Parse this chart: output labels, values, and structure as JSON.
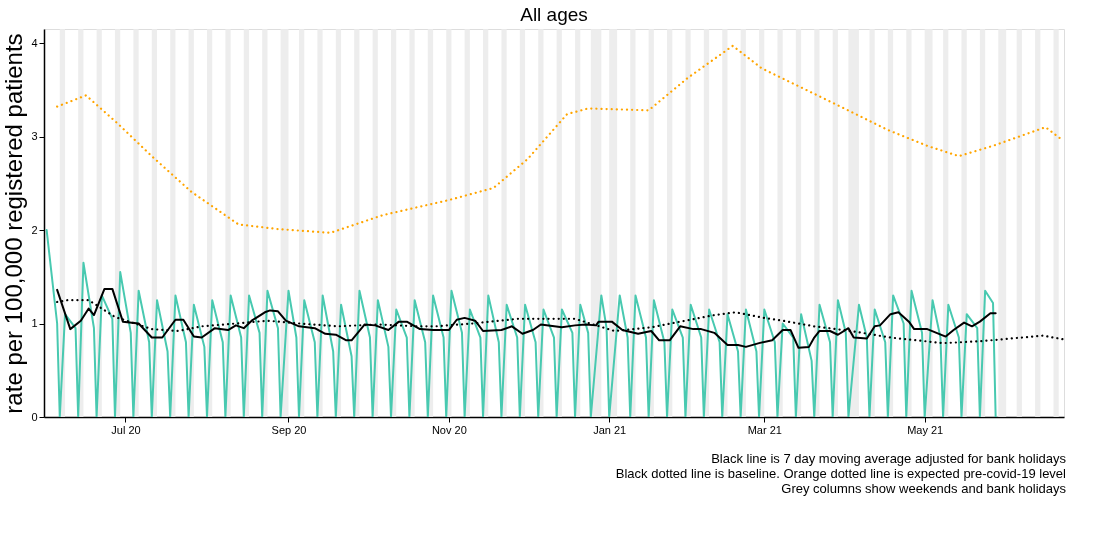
{
  "chart_data": {
    "type": "line",
    "title": "All ages",
    "ylabel": "rate per 100,000 registered patients",
    "xlim": [
      "2020-05-31",
      "2021-06-23"
    ],
    "xticks": [
      {
        "value": "2020-07-01",
        "label": "Jul 20"
      },
      {
        "value": "2020-09-01",
        "label": "Sep 20"
      },
      {
        "value": "2020-11-01",
        "label": "Nov 20"
      },
      {
        "value": "2021-01-01",
        "label": "Jan 21"
      },
      {
        "value": "2021-03-01",
        "label": "Mar 21"
      },
      {
        "value": "2021-05-01",
        "label": "May 21"
      }
    ],
    "ylim": [
      0,
      4.15
    ],
    "yticks": [
      0,
      1,
      2,
      3,
      4
    ],
    "series": [
      {
        "color": "#48c9b0",
        "line_style": "solid",
        "x": [
          "2020-06-01",
          "2020-06-05",
          "2020-06-06",
          "2020-06-08",
          "2020-06-12",
          "2020-06-13",
          "2020-06-15",
          "2020-06-19",
          "2020-06-20",
          "2020-06-22",
          "2020-06-26",
          "2020-06-27",
          "2020-06-29",
          "2020-07-03",
          "2020-07-04",
          "2020-07-06",
          "2020-07-10",
          "2020-07-11",
          "2020-07-13",
          "2020-07-17",
          "2020-07-18",
          "2020-07-20",
          "2020-07-24",
          "2020-07-25",
          "2020-07-27",
          "2020-07-31",
          "2020-08-01",
          "2020-08-03",
          "2020-08-07",
          "2020-08-08",
          "2020-08-10",
          "2020-08-14",
          "2020-08-15",
          "2020-08-17",
          "2020-08-21",
          "2020-08-22",
          "2020-08-24",
          "2020-08-28",
          "2020-08-29",
          "2020-09-01",
          "2020-09-04",
          "2020-09-05",
          "2020-09-07",
          "2020-09-11",
          "2020-09-12",
          "2020-09-14",
          "2020-09-18",
          "2020-09-19",
          "2020-09-21",
          "2020-09-25",
          "2020-09-26",
          "2020-09-28",
          "2020-10-02",
          "2020-10-03",
          "2020-10-05",
          "2020-10-09",
          "2020-10-10",
          "2020-10-12",
          "2020-10-16",
          "2020-10-17",
          "2020-10-19",
          "2020-10-23",
          "2020-10-24",
          "2020-10-26",
          "2020-10-30",
          "2020-10-31",
          "2020-11-02",
          "2020-11-06",
          "2020-11-07",
          "2020-11-09",
          "2020-11-13",
          "2020-11-14",
          "2020-11-16",
          "2020-11-20",
          "2020-11-21",
          "2020-11-23",
          "2020-11-27",
          "2020-11-28",
          "2020-11-30",
          "2020-12-04",
          "2020-12-05",
          "2020-12-07",
          "2020-12-11",
          "2020-12-12",
          "2020-12-14",
          "2020-12-18",
          "2020-12-19",
          "2020-12-21",
          "2020-12-24",
          "2020-12-25",
          "2020-12-29",
          "2020-12-31",
          "2021-01-01",
          "2021-01-05",
          "2021-01-08",
          "2021-01-09",
          "2021-01-11",
          "2021-01-15",
          "2021-01-16",
          "2021-01-18",
          "2021-01-22",
          "2021-01-23",
          "2021-01-25",
          "2021-01-29",
          "2021-01-30",
          "2021-02-01",
          "2021-02-05",
          "2021-02-06",
          "2021-02-08",
          "2021-02-12",
          "2021-02-13",
          "2021-02-15",
          "2021-02-19",
          "2021-02-20",
          "2021-02-22",
          "2021-02-26",
          "2021-02-27",
          "2021-03-01",
          "2021-03-05",
          "2021-03-06",
          "2021-03-08",
          "2021-03-12",
          "2021-03-13",
          "2021-03-15",
          "2021-03-19",
          "2021-03-20",
          "2021-03-22",
          "2021-03-26",
          "2021-03-27",
          "2021-03-29",
          "2021-04-01",
          "2021-04-02",
          "2021-04-06",
          "2021-04-09",
          "2021-04-10",
          "2021-04-12",
          "2021-04-16",
          "2021-04-17",
          "2021-04-19",
          "2021-04-23",
          "2021-04-24",
          "2021-04-26",
          "2021-04-30",
          "2021-05-01",
          "2021-05-04",
          "2021-05-07",
          "2021-05-08",
          "2021-05-10",
          "2021-05-14",
          "2021-05-15",
          "2021-05-17",
          "2021-05-21",
          "2021-05-22",
          "2021-05-24",
          "2021-05-27",
          "2021-05-28"
        ],
        "values": [
          2.0,
          1.0,
          0,
          1.1,
          0.95,
          0,
          1.65,
          0.95,
          0,
          1.3,
          1.05,
          0,
          1.55,
          0.9,
          0,
          1.35,
          0.8,
          0,
          1.25,
          0.7,
          0,
          1.3,
          0.8,
          0,
          1.2,
          0.75,
          0,
          1.25,
          0.8,
          0,
          1.3,
          0.85,
          0,
          1.3,
          0.9,
          0,
          1.35,
          0.95,
          0,
          1.35,
          0.85,
          0,
          1.25,
          0.8,
          0,
          1.3,
          0.7,
          0,
          1.2,
          0.65,
          0,
          1.35,
          0.85,
          0,
          1.25,
          0.75,
          0,
          1.15,
          0.85,
          0,
          1.25,
          0.8,
          0,
          1.3,
          0.85,
          0,
          1.35,
          0.9,
          0,
          1.15,
          0.85,
          0,
          1.3,
          0.8,
          0,
          1.2,
          0.85,
          0,
          1.2,
          0.8,
          0,
          1.15,
          0.85,
          0,
          1.15,
          0.9,
          0,
          1.2,
          0.9,
          0,
          1.3,
          0.95,
          0,
          1.3,
          0.85,
          0,
          1.3,
          0.85,
          0,
          1.25,
          0.8,
          0,
          1.15,
          0.85,
          0,
          1.2,
          0.85,
          0,
          1.15,
          0.8,
          0,
          1.1,
          0.7,
          0,
          1.15,
          0.7,
          0,
          1.15,
          0.8,
          0,
          1.0,
          0.85,
          0,
          1.1,
          0.6,
          0,
          1.2,
          0.8,
          0,
          1.25,
          0.9,
          0,
          1.2,
          0.85,
          0,
          1.15,
          0.8,
          0,
          1.3,
          1.0,
          0,
          1.35,
          0.9,
          0,
          1.25,
          0.85,
          0,
          1.2,
          0.85,
          0,
          1.1,
          0.95,
          0,
          1.35,
          1.22,
          0
        ]
      },
      {
        "color": "#000000",
        "line_style": "solid",
        "x": [
          "2020-06-05",
          "2020-06-10",
          "2020-06-14",
          "2020-06-17",
          "2020-06-19",
          "2020-06-23",
          "2020-06-26",
          "2020-06-30",
          "2020-07-06",
          "2020-07-11",
          "2020-07-15",
          "2020-07-20",
          "2020-07-23",
          "2020-07-27",
          "2020-07-30",
          "2020-08-04",
          "2020-08-09",
          "2020-08-12",
          "2020-08-15",
          "2020-08-18",
          "2020-08-23",
          "2020-08-25",
          "2020-08-28",
          "2020-08-31",
          "2020-09-05",
          "2020-09-11",
          "2020-09-15",
          "2020-09-19",
          "2020-09-23",
          "2020-09-25",
          "2020-09-30",
          "2020-10-04",
          "2020-10-09",
          "2020-10-13",
          "2020-10-16",
          "2020-10-21",
          "2020-10-26",
          "2020-11-01",
          "2020-11-04",
          "2020-11-07",
          "2020-11-11",
          "2020-11-14",
          "2020-11-21",
          "2020-11-25",
          "2020-11-29",
          "2020-12-03",
          "2020-12-06",
          "2020-12-14",
          "2020-12-19",
          "2020-12-23",
          "2020-12-27",
          "2020-12-28",
          "2021-01-02",
          "2021-01-06",
          "2021-01-12",
          "2021-01-17",
          "2021-01-20",
          "2021-01-24",
          "2021-01-28",
          "2021-02-02",
          "2021-02-05",
          "2021-02-10",
          "2021-02-15",
          "2021-02-19",
          "2021-02-22",
          "2021-02-27",
          "2021-03-04",
          "2021-03-08",
          "2021-03-11",
          "2021-03-14",
          "2021-03-18",
          "2021-03-20",
          "2021-03-22",
          "2021-03-26",
          "2021-03-29",
          "2021-04-02",
          "2021-04-04",
          "2021-04-09",
          "2021-04-12",
          "2021-04-14",
          "2021-04-18",
          "2021-04-21",
          "2021-04-25",
          "2021-04-27",
          "2021-05-02",
          "2021-05-09",
          "2021-05-12",
          "2021-05-16",
          "2021-05-19",
          "2021-05-22",
          "2021-05-26",
          "2021-05-28"
        ],
        "values": [
          1.36,
          0.94,
          1.03,
          1.16,
          1.09,
          1.37,
          1.37,
          1.02,
          1.0,
          0.85,
          0.85,
          1.04,
          1.04,
          0.86,
          0.85,
          0.95,
          0.93,
          0.98,
          0.95,
          1.03,
          1.12,
          1.14,
          1.13,
          1.03,
          0.97,
          0.95,
          0.89,
          0.88,
          0.82,
          0.82,
          0.99,
          0.98,
          0.93,
          1.02,
          1.02,
          0.94,
          0.93,
          0.93,
          1.04,
          1.06,
          1.03,
          0.92,
          0.93,
          0.97,
          0.89,
          0.93,
          0.99,
          0.96,
          0.98,
          0.99,
          0.98,
          1.02,
          1.02,
          0.93,
          0.89,
          0.92,
          0.82,
          0.82,
          0.97,
          0.94,
          0.94,
          0.9,
          0.77,
          0.77,
          0.75,
          0.79,
          0.82,
          0.93,
          0.93,
          0.74,
          0.75,
          0.85,
          0.92,
          0.92,
          0.88,
          0.95,
          0.85,
          0.84,
          0.97,
          0.98,
          1.1,
          1.12,
          1.02,
          0.94,
          0.94,
          0.86,
          0.93,
          1.01,
          0.97,
          1.02,
          1.11,
          1.11
        ]
      },
      {
        "color": "#000000",
        "line_style": "dotted",
        "x": [
          "2020-06-05",
          "2020-06-09",
          "2020-06-17",
          "2020-06-27",
          "2020-07-11",
          "2020-07-21",
          "2020-07-30",
          "2020-08-12",
          "2020-08-24",
          "2020-09-05",
          "2020-09-20",
          "2020-10-05",
          "2020-10-20",
          "2020-10-27",
          "2020-11-10",
          "2020-11-27",
          "2020-12-19",
          "2021-01-03",
          "2021-01-17",
          "2021-02-10",
          "2021-02-18",
          "2021-03-01",
          "2021-03-08",
          "2021-03-20",
          "2021-04-03",
          "2021-04-18",
          "2021-05-08",
          "2021-05-22",
          "2021-06-07",
          "2021-06-15",
          "2021-06-23"
        ],
        "values": [
          1.23,
          1.25,
          1.25,
          1.07,
          0.94,
          0.92,
          0.97,
          1.0,
          1.03,
          1.0,
          0.97,
          0.99,
          0.97,
          0.97,
          1.0,
          1.05,
          1.05,
          0.92,
          0.96,
          1.09,
          1.12,
          1.06,
          1.03,
          0.97,
          0.92,
          0.85,
          0.79,
          0.81,
          0.85,
          0.87,
          0.83
        ]
      },
      {
        "color": "#ffa500",
        "line_style": "dotted",
        "x": [
          "2020-06-05",
          "2020-06-16",
          "2020-06-28",
          "2020-07-11",
          "2020-07-26",
          "2020-08-13",
          "2020-08-28",
          "2020-09-17",
          "2020-10-07",
          "2020-11-01",
          "2020-11-18",
          "2020-12-01",
          "2020-12-16",
          "2020-12-24",
          "2021-01-16",
          "2021-01-31",
          "2021-02-17",
          "2021-02-28",
          "2021-03-30",
          "2021-04-17",
          "2021-05-02",
          "2021-05-14",
          "2021-05-27",
          "2021-06-16",
          "2021-06-22"
        ],
        "values": [
          3.32,
          3.44,
          3.14,
          2.79,
          2.41,
          2.06,
          2.01,
          1.97,
          2.16,
          2.32,
          2.45,
          2.76,
          3.24,
          3.3,
          3.28,
          3.63,
          3.97,
          3.73,
          3.32,
          3.07,
          2.9,
          2.79,
          2.9,
          3.1,
          2.97
        ]
      }
    ],
    "bands": [
      {
        "axis": "x",
        "from": "2020-06-06",
        "to": "2020-06-08",
        "color": "#ebebeb"
      },
      {
        "axis": "x",
        "from": "2020-06-13",
        "to": "2020-06-15",
        "color": "#ebebeb"
      },
      {
        "axis": "x",
        "from": "2020-06-20",
        "to": "2020-06-22",
        "color": "#ebebeb"
      },
      {
        "axis": "x",
        "from": "2020-06-27",
        "to": "2020-06-29",
        "color": "#ebebeb"
      },
      {
        "axis": "x",
        "from": "2020-07-04",
        "to": "2020-07-06",
        "color": "#ebebeb"
      },
      {
        "axis": "x",
        "from": "2020-07-11",
        "to": "2020-07-13",
        "color": "#ebebeb"
      },
      {
        "axis": "x",
        "from": "2020-07-18",
        "to": "2020-07-20",
        "color": "#ebebeb"
      },
      {
        "axis": "x",
        "from": "2020-07-25",
        "to": "2020-07-27",
        "color": "#ebebeb"
      },
      {
        "axis": "x",
        "from": "2020-08-01",
        "to": "2020-08-03",
        "color": "#ebebeb"
      },
      {
        "axis": "x",
        "from": "2020-08-08",
        "to": "2020-08-10",
        "color": "#ebebeb"
      },
      {
        "axis": "x",
        "from": "2020-08-15",
        "to": "2020-08-17",
        "color": "#ebebeb"
      },
      {
        "axis": "x",
        "from": "2020-08-22",
        "to": "2020-08-24",
        "color": "#ebebeb"
      },
      {
        "axis": "x",
        "from": "2020-08-29",
        "to": "2020-09-01",
        "color": "#ebebeb"
      },
      {
        "axis": "x",
        "from": "2020-09-05",
        "to": "2020-09-07",
        "color": "#ebebeb"
      },
      {
        "axis": "x",
        "from": "2020-09-12",
        "to": "2020-09-14",
        "color": "#ebebeb"
      },
      {
        "axis": "x",
        "from": "2020-09-19",
        "to": "2020-09-21",
        "color": "#ebebeb"
      },
      {
        "axis": "x",
        "from": "2020-09-26",
        "to": "2020-09-28",
        "color": "#ebebeb"
      },
      {
        "axis": "x",
        "from": "2020-10-03",
        "to": "2020-10-05",
        "color": "#ebebeb"
      },
      {
        "axis": "x",
        "from": "2020-10-10",
        "to": "2020-10-12",
        "color": "#ebebeb"
      },
      {
        "axis": "x",
        "from": "2020-10-17",
        "to": "2020-10-19",
        "color": "#ebebeb"
      },
      {
        "axis": "x",
        "from": "2020-10-24",
        "to": "2020-10-26",
        "color": "#ebebeb"
      },
      {
        "axis": "x",
        "from": "2020-10-31",
        "to": "2020-11-02",
        "color": "#ebebeb"
      },
      {
        "axis": "x",
        "from": "2020-11-07",
        "to": "2020-11-09",
        "color": "#ebebeb"
      },
      {
        "axis": "x",
        "from": "2020-11-14",
        "to": "2020-11-16",
        "color": "#ebebeb"
      },
      {
        "axis": "x",
        "from": "2020-11-21",
        "to": "2020-11-23",
        "color": "#ebebeb"
      },
      {
        "axis": "x",
        "from": "2020-11-28",
        "to": "2020-11-30",
        "color": "#ebebeb"
      },
      {
        "axis": "x",
        "from": "2020-12-05",
        "to": "2020-12-07",
        "color": "#ebebeb"
      },
      {
        "axis": "x",
        "from": "2020-12-12",
        "to": "2020-12-14",
        "color": "#ebebeb"
      },
      {
        "axis": "x",
        "from": "2020-12-19",
        "to": "2020-12-21",
        "color": "#ebebeb"
      },
      {
        "axis": "x",
        "from": "2020-12-25",
        "to": "2020-12-29",
        "color": "#ebebeb"
      },
      {
        "axis": "x",
        "from": "2021-01-01",
        "to": "2021-01-04",
        "color": "#ebebeb"
      },
      {
        "axis": "x",
        "from": "2021-01-09",
        "to": "2021-01-11",
        "color": "#ebebeb"
      },
      {
        "axis": "x",
        "from": "2021-01-16",
        "to": "2021-01-18",
        "color": "#ebebeb"
      },
      {
        "axis": "x",
        "from": "2021-01-23",
        "to": "2021-01-25",
        "color": "#ebebeb"
      },
      {
        "axis": "x",
        "from": "2021-01-30",
        "to": "2021-02-01",
        "color": "#ebebeb"
      },
      {
        "axis": "x",
        "from": "2021-02-06",
        "to": "2021-02-08",
        "color": "#ebebeb"
      },
      {
        "axis": "x",
        "from": "2021-02-13",
        "to": "2021-02-15",
        "color": "#ebebeb"
      },
      {
        "axis": "x",
        "from": "2021-02-20",
        "to": "2021-02-22",
        "color": "#ebebeb"
      },
      {
        "axis": "x",
        "from": "2021-02-27",
        "to": "2021-03-01",
        "color": "#ebebeb"
      },
      {
        "axis": "x",
        "from": "2021-03-06",
        "to": "2021-03-08",
        "color": "#ebebeb"
      },
      {
        "axis": "x",
        "from": "2021-03-13",
        "to": "2021-03-15",
        "color": "#ebebeb"
      },
      {
        "axis": "x",
        "from": "2021-03-20",
        "to": "2021-03-22",
        "color": "#ebebeb"
      },
      {
        "axis": "x",
        "from": "2021-03-27",
        "to": "2021-03-29",
        "color": "#ebebeb"
      },
      {
        "axis": "x",
        "from": "2021-04-02",
        "to": "2021-04-06",
        "color": "#ebebeb"
      },
      {
        "axis": "x",
        "from": "2021-04-10",
        "to": "2021-04-12",
        "color": "#ebebeb"
      },
      {
        "axis": "x",
        "from": "2021-04-17",
        "to": "2021-04-19",
        "color": "#ebebeb"
      },
      {
        "axis": "x",
        "from": "2021-04-24",
        "to": "2021-04-26",
        "color": "#ebebeb"
      },
      {
        "axis": "x",
        "from": "2021-05-01",
        "to": "2021-05-04",
        "color": "#ebebeb"
      },
      {
        "axis": "x",
        "from": "2021-05-08",
        "to": "2021-05-10",
        "color": "#ebebeb"
      },
      {
        "axis": "x",
        "from": "2021-05-15",
        "to": "2021-05-17",
        "color": "#ebebeb"
      },
      {
        "axis": "x",
        "from": "2021-05-22",
        "to": "2021-05-24",
        "color": "#ebebeb"
      },
      {
        "axis": "x",
        "from": "2021-05-29",
        "to": "2021-06-01",
        "color": "#ebebeb"
      },
      {
        "axis": "x",
        "from": "2021-06-05",
        "to": "2021-06-07",
        "color": "#ebebeb"
      },
      {
        "axis": "x",
        "from": "2021-06-12",
        "to": "2021-06-14",
        "color": "#ebebeb"
      },
      {
        "axis": "x",
        "from": "2021-06-19",
        "to": "2021-06-21",
        "color": "#ebebeb"
      }
    ],
    "annotations": [
      "Black line is 7 day moving average adjusted for bank holidays",
      "Black dotted line is baseline. Orange dotted line is expected pre-covid-19 level",
      "Grey columns show weekends and bank holidays"
    ]
  }
}
